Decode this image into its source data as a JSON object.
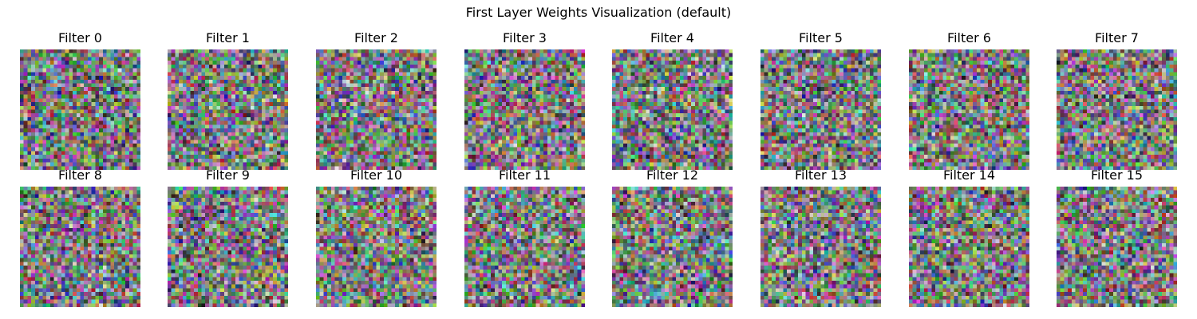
{
  "chart_data": {
    "type": "heatmap",
    "title": "First Layer Weights Visualization (default)",
    "grid": false,
    "axes_visible": false,
    "rows": 2,
    "cols": 8,
    "panel_resolution": [
      32,
      32
    ],
    "color_mode": "rgb",
    "panels": [
      {
        "title": "Filter 0"
      },
      {
        "title": "Filter 1"
      },
      {
        "title": "Filter 2"
      },
      {
        "title": "Filter 3"
      },
      {
        "title": "Filter 4"
      },
      {
        "title": "Filter 5"
      },
      {
        "title": "Filter 6"
      },
      {
        "title": "Filter 7"
      },
      {
        "title": "Filter 8"
      },
      {
        "title": "Filter 9"
      },
      {
        "title": "Filter 10"
      },
      {
        "title": "Filter 11"
      },
      {
        "title": "Filter 12"
      },
      {
        "title": "Filter 13"
      },
      {
        "title": "Filter 14"
      },
      {
        "title": "Filter 15"
      }
    ]
  }
}
